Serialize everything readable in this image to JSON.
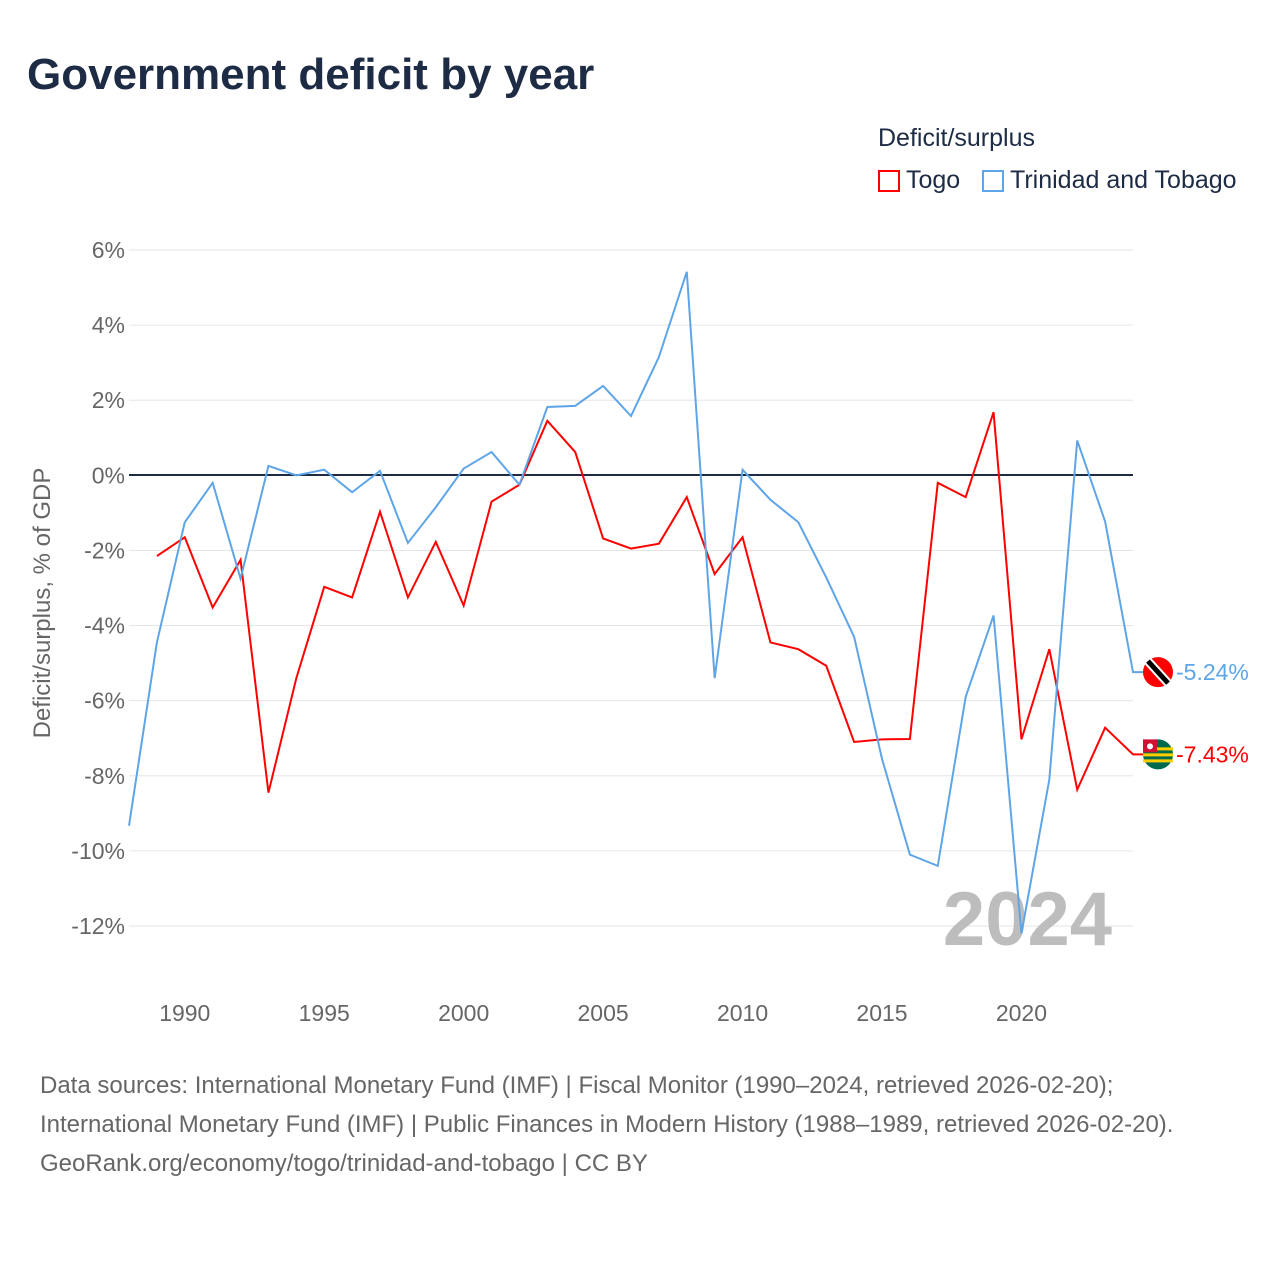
{
  "title": "Government deficit by year",
  "legend": {
    "title": "Deficit/surplus"
  },
  "sources": {
    "line1": "Data sources: International Monetary Fund (IMF) | Fiscal Monitor (1990–2024, retrieved 2026-02-20); International Monetary Fund (IMF) | Public Finances in Modern History (1988–1989, retrieved 2026-02-20).",
    "line2": "GeoRank.org/economy/togo/trinidad-and-tobago | CC BY"
  },
  "chart_data": {
    "type": "line",
    "title": "Government deficit by year",
    "xlabel": "",
    "ylabel": "Deficit/surplus, % of GDP",
    "xlim": [
      1988,
      2024
    ],
    "ylim": [
      -12,
      6
    ],
    "yticks": [
      6,
      4,
      2,
      0,
      -2,
      -4,
      -6,
      -8,
      -10,
      -12
    ],
    "ytick_labels": [
      "6%",
      "4%",
      "2%",
      "0%",
      "-2%",
      "-4%",
      "-6%",
      "-8%",
      "-10%",
      "-12%"
    ],
    "xticks": [
      1990,
      1995,
      2000,
      2005,
      2010,
      2015,
      2020
    ],
    "xtick_labels": [
      "1990",
      "1995",
      "2000",
      "2005",
      "2010",
      "2015",
      "2020"
    ],
    "year_watermark": "2024",
    "legend_position": "top-right",
    "series": [
      {
        "name": "Togo",
        "color": "#ff0000",
        "end_label": "-7.43%",
        "x": [
          1989,
          1990,
          1991,
          1992,
          1993,
          1994,
          1995,
          1996,
          1997,
          1998,
          1999,
          2000,
          2001,
          2002,
          2003,
          2004,
          2005,
          2006,
          2007,
          2008,
          2009,
          2010,
          2011,
          2012,
          2013,
          2014,
          2015,
          2016,
          2017,
          2018,
          2019,
          2020,
          2021,
          2022,
          2023,
          2024
        ],
        "values": [
          -2.15,
          -1.65,
          -3.52,
          -2.25,
          -8.45,
          -5.4,
          -2.97,
          -3.25,
          -0.97,
          -3.25,
          -1.77,
          -3.47,
          -0.7,
          -0.25,
          1.45,
          0.62,
          -1.68,
          -1.95,
          -1.82,
          -0.58,
          -2.63,
          -1.65,
          -4.45,
          -4.63,
          -5.07,
          -7.1,
          -7.03,
          -7.02,
          -0.2,
          -0.58,
          1.68,
          -7.03,
          -4.63,
          -8.37,
          -6.72,
          -7.43
        ]
      },
      {
        "name": "Trinidad and Tobago",
        "color": "#5ea5e8",
        "end_label": "-5.24%",
        "x": [
          1988,
          1989,
          1990,
          1991,
          1992,
          1993,
          1994,
          1995,
          1996,
          1997,
          1998,
          1999,
          2000,
          2001,
          2002,
          2003,
          2004,
          2005,
          2006,
          2007,
          2008,
          2009,
          2010,
          2011,
          2012,
          2013,
          2014,
          2015,
          2016,
          2017,
          2018,
          2019,
          2020,
          2021,
          2022,
          2023,
          2024
        ],
        "values": [
          -9.33,
          -4.45,
          -1.25,
          -0.2,
          -2.75,
          0.25,
          0.0,
          0.15,
          -0.45,
          0.12,
          -1.8,
          -0.85,
          0.18,
          0.62,
          -0.25,
          1.82,
          1.85,
          2.38,
          1.58,
          3.15,
          5.42,
          -5.4,
          0.15,
          -0.65,
          -1.25,
          -2.72,
          -4.3,
          -7.55,
          -10.1,
          -10.4,
          -5.9,
          -3.73,
          -12.2,
          -8.1,
          0.93,
          -1.23,
          -5.24
        ]
      }
    ]
  }
}
